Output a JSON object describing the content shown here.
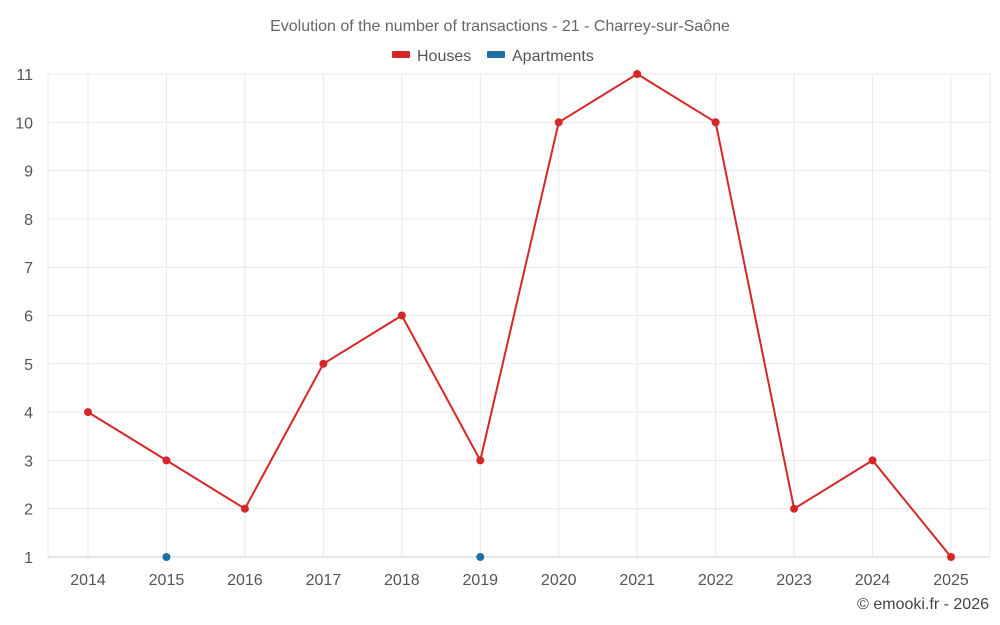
{
  "chart_data": {
    "type": "line",
    "title": "Evolution of the number of transactions - 21 - Charrey-sur-Saône",
    "xlabel": "",
    "ylabel": "",
    "categories": [
      "2014",
      "2015",
      "2016",
      "2017",
      "2018",
      "2019",
      "2020",
      "2021",
      "2022",
      "2023",
      "2024",
      "2025"
    ],
    "ylim": [
      1,
      11
    ],
    "yticks": [
      "1",
      "2",
      "3",
      "4",
      "5",
      "6",
      "7",
      "8",
      "9",
      "10",
      "11"
    ],
    "grid": true,
    "legend_position": "top-center",
    "series": [
      {
        "name": "Houses",
        "color": "#d62728",
        "values": [
          4,
          3,
          2,
          5,
          6,
          3,
          10,
          11,
          10,
          2,
          3,
          1
        ],
        "line": true
      },
      {
        "name": "Apartments",
        "color": "#1f6fa5",
        "values": [
          null,
          1,
          null,
          null,
          null,
          1,
          null,
          null,
          null,
          null,
          null,
          null
        ],
        "line": false
      }
    ]
  },
  "credit": "© emooki.fr - 2026"
}
